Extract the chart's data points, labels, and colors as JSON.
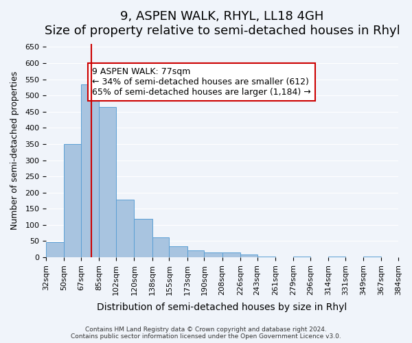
{
  "title": "9, ASPEN WALK, RHYL, LL18 4GH",
  "subtitle": "Size of property relative to semi-detached houses in Rhyl",
  "xlabel": "Distribution of semi-detached houses by size in Rhyl",
  "ylabel": "Number of semi-detached properties",
  "bin_labels": [
    "32sqm",
    "50sqm",
    "67sqm",
    "85sqm",
    "102sqm",
    "120sqm",
    "138sqm",
    "155sqm",
    "173sqm",
    "190sqm",
    "208sqm",
    "226sqm",
    "243sqm",
    "261sqm",
    "279sqm",
    "296sqm",
    "314sqm",
    "331sqm",
    "349sqm",
    "367sqm",
    "384sqm"
  ],
  "bin_edges": [
    32,
    50,
    67,
    85,
    102,
    120,
    138,
    155,
    173,
    190,
    208,
    226,
    243,
    261,
    279,
    296,
    314,
    331,
    349,
    367,
    384
  ],
  "bar_heights": [
    47,
    350,
    535,
    465,
    178,
    118,
    62,
    35,
    22,
    14,
    14,
    8,
    3,
    0,
    2,
    0,
    2,
    0,
    2,
    0
  ],
  "bar_color": "#a8c4e0",
  "bar_edge_color": "#5a9fd4",
  "property_line_x": 77,
  "property_line_color": "#cc0000",
  "ylim": [
    0,
    660
  ],
  "yticks": [
    0,
    50,
    100,
    150,
    200,
    250,
    300,
    350,
    400,
    450,
    500,
    550,
    600,
    650
  ],
  "annotation_title": "9 ASPEN WALK: 77sqm",
  "annotation_line1": "← 34% of semi-detached houses are smaller (612)",
  "annotation_line2": "65% of semi-detached houses are larger (1,184) →",
  "annotation_box_color": "#ffffff",
  "annotation_box_edge_color": "#cc0000",
  "footer_line1": "Contains HM Land Registry data © Crown copyright and database right 2024.",
  "footer_line2": "Contains public sector information licensed under the Open Government Licence v3.0.",
  "bg_color": "#f0f4fa",
  "grid_color": "#ffffff",
  "title_fontsize": 13,
  "subtitle_fontsize": 11,
  "tick_label_fontsize": 8
}
